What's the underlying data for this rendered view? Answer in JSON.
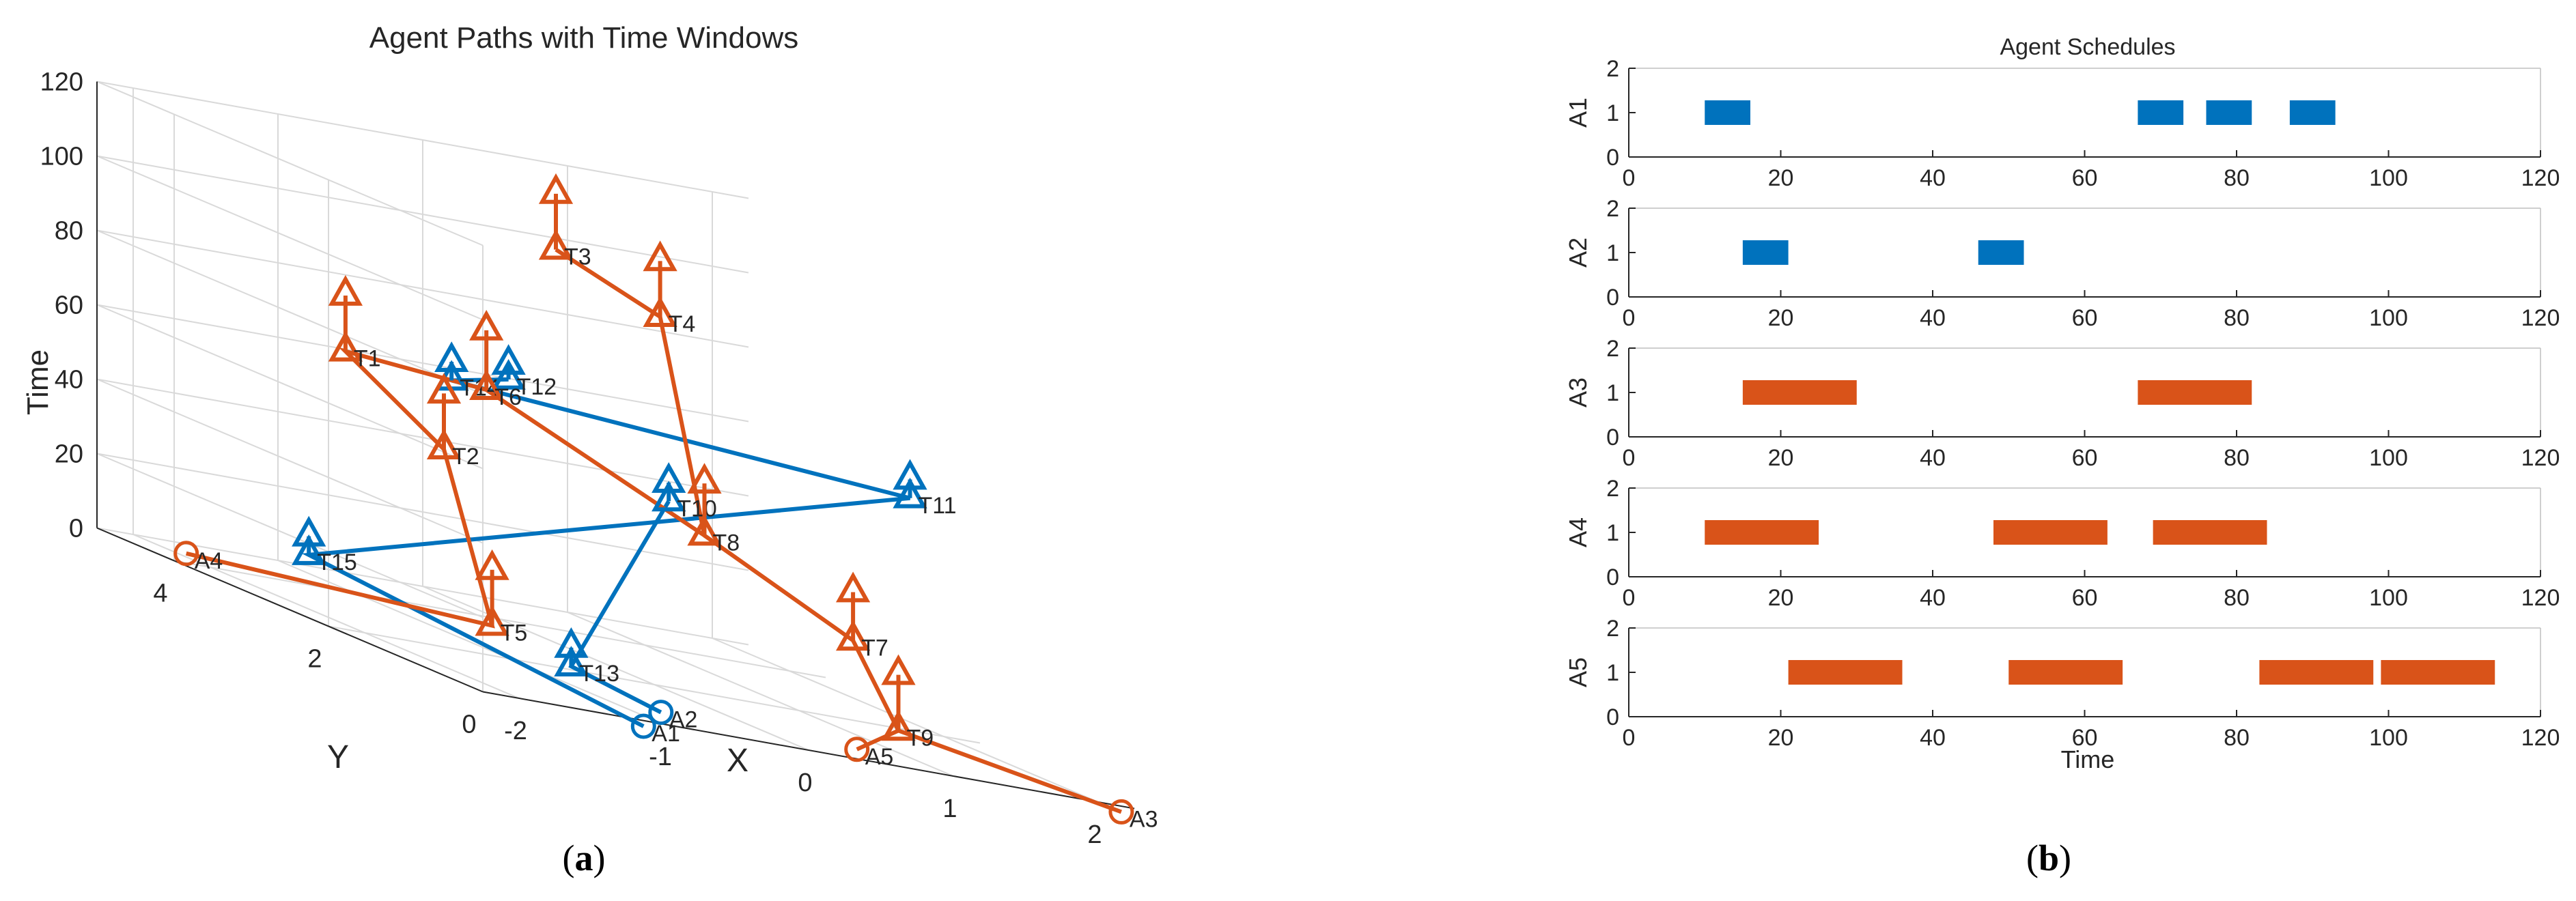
{
  "colors": {
    "blue": "#0072BD",
    "orange": "#D95319",
    "axis": "#262626",
    "grid": "#d9d9d9"
  },
  "panel_a": {
    "caption_open": "(",
    "caption_letter": "a",
    "caption_close": ")",
    "title": "Agent Paths with Time Windows",
    "time_label": "Time",
    "y_label": "Y",
    "x_label": "X",
    "time_ticks": [
      "0",
      "20",
      "40",
      "60",
      "80",
      "100",
      "120"
    ],
    "y_ticks": [
      "4",
      "2",
      "0"
    ],
    "x_ticks": [
      "-2",
      "-1",
      "0",
      "1",
      "2"
    ]
  },
  "panel_b": {
    "caption_open": "(",
    "caption_letter": "b",
    "caption_close": ")",
    "title": "Agent Schedules",
    "x_label": "Time",
    "x_ticks": [
      "0",
      "20",
      "40",
      "60",
      "80",
      "100",
      "120"
    ],
    "y_ticks": [
      "0",
      "1",
      "2"
    ]
  },
  "chart_data": [
    {
      "type": "scatter",
      "title": "Agent Paths with Time Windows",
      "xlabel": "X",
      "ylabel": "Y",
      "zlabel": "Time",
      "xlim": [
        -2,
        2
      ],
      "ylim": [
        0,
        5
      ],
      "zlim": [
        0,
        120
      ],
      "grid": true,
      "series": [
        {
          "color": "blue",
          "points": [
            {
              "label": "A1",
              "marker": "circle",
              "pos": [
                -1.3,
                -0.3,
                0
              ]
            },
            {
              "label": "T15",
              "marker": "triangle",
              "pos": [
                -1.0,
                4.6,
                5
              ]
            },
            {
              "label": "",
              "marker": "triangle",
              "pos": [
                -1.0,
                4.6,
                10
              ]
            },
            {
              "label": "T11",
              "marker": "triangle",
              "pos": [
                1.5,
                1.5,
                65
              ]
            },
            {
              "label": "",
              "marker": "triangle",
              "pos": [
                1.5,
                1.5,
                70
              ]
            },
            {
              "label": "T14",
              "marker": "triangle",
              "pos": [
                -1.4,
                2.0,
                72
              ]
            },
            {
              "label": "",
              "marker": "triangle",
              "pos": [
                -1.4,
                2.0,
                77
              ]
            },
            {
              "label": "T12",
              "marker": "triangle",
              "pos": [
                -0.9,
                2.2,
                74
              ]
            },
            {
              "label": "",
              "marker": "triangle",
              "pos": [
                -0.9,
                2.2,
                78
              ]
            },
            {
              "label": "A2",
              "marker": "circle",
              "pos": [
                -0.7,
                0.6,
                0
              ]
            },
            {
              "label": "T13",
              "marker": "triangle",
              "pos": [
                -1.0,
                1.2,
                5
              ]
            },
            {
              "label": "",
              "marker": "triangle",
              "pos": [
                -1.0,
                1.2,
                10
              ]
            },
            {
              "label": "T10",
              "marker": "triangle",
              "pos": [
                0.1,
                2.0,
                50
              ]
            },
            {
              "label": "",
              "marker": "triangle",
              "pos": [
                0.1,
                2.0,
                55
              ]
            }
          ]
        },
        {
          "color": "orange",
          "points": [
            {
              "label": "A4",
              "marker": "circle",
              "pos": [
                -1.9,
                4.5,
                0
              ]
            },
            {
              "label": "T5",
              "marker": "triangle",
              "pos": [
                -0.8,
                2.6,
                5
              ]
            },
            {
              "label": "",
              "marker": "triangle",
              "pos": [
                -0.8,
                2.6,
                20
              ]
            },
            {
              "label": "T2",
              "marker": "triangle",
              "pos": [
                -0.6,
                3.6,
                45
              ]
            },
            {
              "label": "",
              "marker": "triangle",
              "pos": [
                -0.6,
                3.6,
                60
              ]
            },
            {
              "label": "T1",
              "marker": "triangle",
              "pos": [
                -0.8,
                4.5,
                62
              ]
            },
            {
              "label": "",
              "marker": "triangle",
              "pos": [
                -0.8,
                4.5,
                77
              ]
            },
            {
              "label": "T6",
              "marker": "triangle",
              "pos": [
                -0.2,
                3.8,
                62
              ]
            },
            {
              "label": "",
              "marker": "triangle",
              "pos": [
                -0.2,
                3.8,
                78
              ]
            },
            {
              "label": "T8",
              "marker": "triangle",
              "pos": [
                0.4,
                2.1,
                42
              ]
            },
            {
              "label": "",
              "marker": "triangle",
              "pos": [
                0.4,
                2.1,
                56
              ]
            },
            {
              "label": "T4",
              "marker": "triangle",
              "pos": [
                1.0,
                3.8,
                90
              ]
            },
            {
              "label": "",
              "marker": "triangle",
              "pos": [
                1.0,
                3.8,
                105
              ]
            },
            {
              "label": "T3",
              "marker": "triangle",
              "pos": [
                0.6,
                4.4,
                100
              ]
            },
            {
              "label": "",
              "marker": "triangle",
              "pos": [
                0.6,
                4.4,
                115
              ]
            },
            {
              "label": "T7",
              "marker": "triangle",
              "pos": [
                1.0,
                1.3,
                25
              ]
            },
            {
              "label": "",
              "marker": "triangle",
              "pos": [
                1.0,
                1.3,
                38
              ]
            },
            {
              "label": "T9",
              "marker": "triangle",
              "pos": [
                1.1,
                0.9,
                5
              ]
            },
            {
              "label": "",
              "marker": "triangle",
              "pos": [
                1.1,
                0.9,
                20
              ]
            },
            {
              "label": "A5",
              "marker": "circle",
              "pos": [
                0.6,
                0.5,
                0
              ]
            },
            {
              "label": "A3",
              "marker": "circle",
              "pos": [
                2.0,
                -0.3,
                0
              ]
            }
          ]
        }
      ],
      "paths": [
        {
          "color": "blue",
          "points": [
            "A1",
            "T15",
            "T11",
            "T14",
            "T12"
          ]
        },
        {
          "color": "blue",
          "points": [
            "A2",
            "T13",
            "T10"
          ]
        },
        {
          "color": "orange",
          "points": [
            "A4",
            "T5",
            "T2",
            "T1",
            "T6",
            "T8",
            "T4",
            "T3"
          ]
        },
        {
          "color": "orange",
          "points": [
            "A3",
            "T9",
            "T7",
            "T8"
          ]
        },
        {
          "color": "orange",
          "points": [
            "A5",
            "T9"
          ]
        }
      ]
    },
    {
      "type": "bar",
      "title": "Agent Schedules",
      "xlabel": "Time",
      "xlim": [
        0,
        120
      ],
      "ylim": [
        0,
        2
      ],
      "rows": [
        {
          "name": "A1",
          "color": "blue",
          "bars": [
            [
              10,
              16
            ],
            [
              67,
              73
            ],
            [
              76,
              82
            ],
            [
              87,
              93
            ]
          ]
        },
        {
          "name": "A2",
          "color": "blue",
          "bars": [
            [
              15,
              21
            ],
            [
              46,
              52
            ]
          ]
        },
        {
          "name": "A3",
          "color": "orange",
          "bars": [
            [
              15,
              30
            ],
            [
              67,
              82
            ]
          ]
        },
        {
          "name": "A4",
          "color": "orange",
          "bars": [
            [
              10,
              25
            ],
            [
              48,
              63
            ],
            [
              69,
              84
            ]
          ]
        },
        {
          "name": "A5",
          "color": "orange",
          "bars": [
            [
              21,
              36
            ],
            [
              50,
              65
            ],
            [
              83,
              98
            ],
            [
              99,
              114
            ]
          ]
        }
      ]
    }
  ]
}
